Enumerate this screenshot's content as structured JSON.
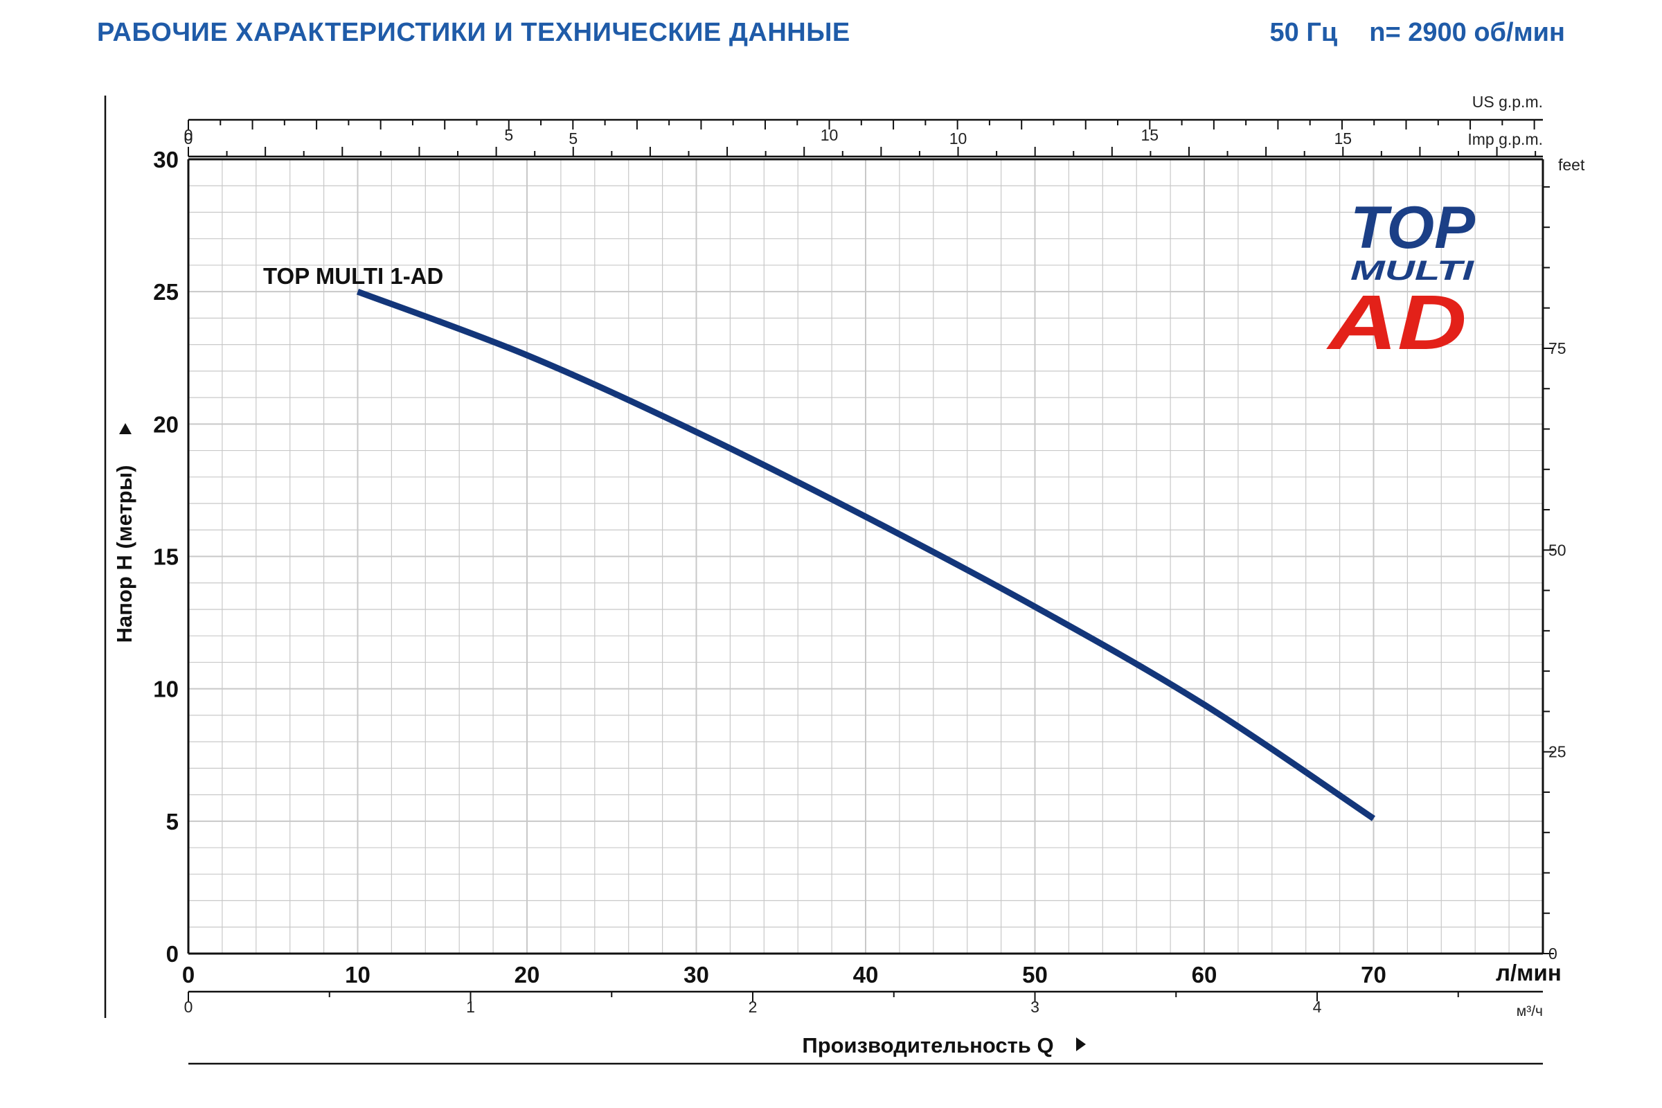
{
  "header": {
    "title": "РАБОЧИЕ ХАРАКТЕРИСТИКИ И ТЕХНИЧЕСКИЕ ДАННЫЕ",
    "frequency": "50 Гц",
    "speed": "n= 2900 об/мин"
  },
  "logo": {
    "line1": "TOP",
    "line2": "MULTI",
    "line3": "AD"
  },
  "colors": {
    "accent": "#1f5ba8",
    "curve": "#13367a",
    "logo_red": "#e32119",
    "grid": "#c8c8c8"
  },
  "chart_data": {
    "type": "line",
    "title": "",
    "series": [
      {
        "name": "TOP MULTI 1-AD",
        "x": [
          10,
          20,
          30,
          40,
          50,
          60,
          70
        ],
        "values": [
          25.0,
          22.6,
          19.7,
          16.5,
          13.1,
          9.4,
          5.1
        ]
      }
    ],
    "xlabel": "Производительность Q",
    "ylabel": "Напор H  (метры)",
    "xunit": "л/мин",
    "xlim": [
      0,
      80
    ],
    "ylim": [
      0,
      30
    ],
    "x_ticks": [
      "0",
      "10",
      "20",
      "30",
      "40",
      "50",
      "60",
      "70"
    ],
    "y_ticks": [
      "0",
      "5",
      "10",
      "15",
      "20",
      "25",
      "30"
    ],
    "secondary_axes": {
      "us_gpm": {
        "label": "US g.p.m.",
        "ticks": [
          "0",
          "5",
          "10",
          "15"
        ]
      },
      "imp_gpm": {
        "label": "Imp g.p.m.",
        "ticks": [
          "0",
          "5",
          "10",
          "15"
        ]
      },
      "m3h": {
        "label": "м³/ч",
        "ticks": [
          "0",
          "1",
          "2",
          "3",
          "4"
        ]
      },
      "feet": {
        "label": "feet",
        "ticks": [
          "0",
          "25",
          "50",
          "75"
        ]
      }
    },
    "grid": true,
    "legend": "none"
  }
}
